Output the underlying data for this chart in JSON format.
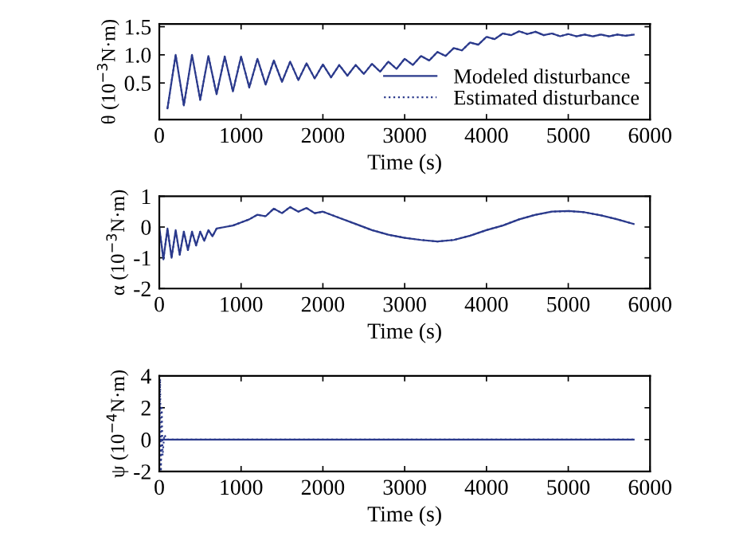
{
  "chart_data": [
    {
      "type": "line",
      "xlabel": "Time (s)",
      "ylabel": "θ (10$^{−3}$N·m)",
      "xlim": [
        0,
        6000
      ],
      "xticks": [
        0,
        1000,
        2000,
        3000,
        4000,
        5000,
        6000
      ],
      "ylim": [
        -0.15,
        1.55
      ],
      "yticks": [
        0.5,
        {
          "value": 1,
          "label": "1.0"
        },
        1.5
      ],
      "legend": "bottom right",
      "grid": false,
      "series": [
        {
          "name": "Modeled disturbance",
          "color": "#2b3a8c",
          "line_style": "solid",
          "x": [
            100,
            200,
            300,
            400,
            500,
            600,
            700,
            800,
            900,
            1000,
            1100,
            1200,
            1300,
            1400,
            1500,
            1600,
            1700,
            1800,
            1900,
            2000,
            2100,
            2200,
            2300,
            2400,
            2500,
            2600,
            2700,
            2800,
            2900,
            3000,
            3100,
            3200,
            3300,
            3400,
            3500,
            3600,
            3700,
            3800,
            3900,
            4000,
            4100,
            4200,
            4300,
            4400,
            4500,
            4600,
            4700,
            4800,
            4900,
            5000,
            5100,
            5200,
            5300,
            5400,
            5500,
            5600,
            5700,
            5800
          ],
          "values": [
            0.05,
            1.0,
            0.1,
            1.0,
            0.2,
            0.98,
            0.3,
            0.97,
            0.35,
            0.97,
            0.42,
            0.93,
            0.47,
            0.9,
            0.52,
            0.88,
            0.55,
            0.85,
            0.58,
            0.83,
            0.6,
            0.82,
            0.63,
            0.82,
            0.66,
            0.84,
            0.7,
            0.88,
            0.75,
            0.93,
            0.82,
            0.98,
            0.9,
            1.05,
            0.98,
            1.12,
            1.08,
            1.22,
            1.18,
            1.32,
            1.28,
            1.38,
            1.35,
            1.42,
            1.37,
            1.41,
            1.35,
            1.38,
            1.33,
            1.37,
            1.33,
            1.36,
            1.33,
            1.36,
            1.33,
            1.36,
            1.34,
            1.36
          ]
        },
        {
          "name": "Estimated disturbance",
          "color": "#2b3a8c",
          "line_style": "dotted",
          "x": [
            100,
            200,
            300,
            400,
            500,
            600,
            700,
            800,
            900,
            1000,
            1100,
            1200,
            1300,
            1400,
            1500,
            1600,
            1700,
            1800,
            1900,
            2000,
            2100,
            2200,
            2300,
            2400,
            2500,
            2600,
            2700,
            2800,
            2900,
            3000,
            3100,
            3200,
            3300,
            3400,
            3500,
            3600,
            3700,
            3800,
            3900,
            4000,
            4100,
            4200,
            4300,
            4400,
            4500,
            4600,
            4700,
            4800,
            4900,
            5000,
            5100,
            5200,
            5300,
            5400,
            5500,
            5600,
            5700,
            5800
          ],
          "values": [
            0.05,
            1.0,
            0.1,
            1.0,
            0.2,
            0.98,
            0.3,
            0.97,
            0.35,
            0.97,
            0.42,
            0.93,
            0.47,
            0.9,
            0.52,
            0.88,
            0.55,
            0.85,
            0.58,
            0.83,
            0.6,
            0.82,
            0.63,
            0.82,
            0.66,
            0.84,
            0.7,
            0.88,
            0.75,
            0.93,
            0.82,
            0.98,
            0.9,
            1.05,
            0.98,
            1.12,
            1.08,
            1.22,
            1.18,
            1.32,
            1.28,
            1.38,
            1.35,
            1.42,
            1.37,
            1.41,
            1.35,
            1.38,
            1.33,
            1.37,
            1.33,
            1.36,
            1.33,
            1.36,
            1.33,
            1.36,
            1.34,
            1.36
          ]
        }
      ]
    },
    {
      "type": "line",
      "xlabel": "Time (s)",
      "ylabel": "α (10$^{−3}$N·m)",
      "xlim": [
        0,
        6000
      ],
      "xticks": [
        0,
        1000,
        2000,
        3000,
        4000,
        5000,
        6000
      ],
      "ylim": [
        -2,
        1
      ],
      "yticks": [
        -2,
        -1,
        0,
        1
      ],
      "grid": false,
      "series": [
        {
          "color": "#2b3a8c",
          "line_style": "solid",
          "x": [
            0,
            50,
            100,
            150,
            200,
            250,
            300,
            350,
            400,
            450,
            500,
            550,
            600,
            650,
            700,
            800,
            900,
            1000,
            1100,
            1200,
            1300,
            1400,
            1500,
            1600,
            1700,
            1800,
            1900,
            2000,
            2200,
            2400,
            2600,
            2800,
            3000,
            3200,
            3400,
            3600,
            3800,
            4000,
            4200,
            4400,
            4600,
            4800,
            5000,
            5200,
            5400,
            5600,
            5800
          ],
          "values": [
            0,
            -1.05,
            -0.05,
            -1.0,
            -0.1,
            -0.9,
            -0.15,
            -0.75,
            -0.15,
            -0.6,
            -0.15,
            -0.45,
            -0.1,
            -0.3,
            -0.05,
            0,
            0.05,
            0.15,
            0.25,
            0.4,
            0.35,
            0.6,
            0.45,
            0.65,
            0.5,
            0.62,
            0.45,
            0.5,
            0.3,
            0.1,
            -0.1,
            -0.25,
            -0.35,
            -0.42,
            -0.47,
            -0.42,
            -0.28,
            -0.1,
            0.05,
            0.25,
            0.4,
            0.5,
            0.52,
            0.48,
            0.38,
            0.25,
            0.1
          ]
        },
        {
          "color": "#2b3a8c",
          "line_style": "dotted",
          "x": [
            0,
            50,
            100,
            150,
            200,
            250,
            300,
            350,
            400,
            450,
            500,
            550,
            600,
            650,
            700,
            800,
            900,
            1000,
            1100,
            1200,
            1300,
            1400,
            1500,
            1600,
            1700,
            1800,
            1900,
            2000,
            2200,
            2400,
            2600,
            2800,
            3000,
            3200,
            3400,
            3600,
            3800,
            4000,
            4200,
            4400,
            4600,
            4800,
            5000,
            5200,
            5400,
            5600,
            5800
          ],
          "values": [
            0,
            -1.05,
            -0.05,
            -1.0,
            -0.1,
            -0.9,
            -0.15,
            -0.75,
            -0.15,
            -0.6,
            -0.15,
            -0.45,
            -0.1,
            -0.3,
            -0.05,
            0,
            0.05,
            0.15,
            0.25,
            0.4,
            0.35,
            0.6,
            0.45,
            0.65,
            0.5,
            0.62,
            0.45,
            0.5,
            0.3,
            0.1,
            -0.1,
            -0.25,
            -0.35,
            -0.42,
            -0.47,
            -0.42,
            -0.28,
            -0.1,
            0.05,
            0.25,
            0.4,
            0.5,
            0.52,
            0.48,
            0.38,
            0.25,
            0.1
          ]
        }
      ]
    },
    {
      "type": "line",
      "xlabel": "Time (s)",
      "ylabel": "ψ (10$^{−4}$N·m)",
      "xlim": [
        0,
        6000
      ],
      "xticks": [
        0,
        1000,
        2000,
        3000,
        4000,
        5000,
        6000
      ],
      "ylim": [
        -2,
        4
      ],
      "yticks": [
        -2,
        0,
        2,
        4
      ],
      "grid": false,
      "series": [
        {
          "color": "#2b3a8c",
          "line_style": "solid",
          "x": [
            0,
            5800
          ],
          "values": [
            0,
            0
          ]
        },
        {
          "color": "#2b3a8c",
          "line_style": "dotted",
          "x": [
            0,
            10,
            20,
            30,
            40,
            60,
            100,
            5800
          ],
          "values": [
            0,
            3.8,
            -2,
            2,
            -1,
            0.3,
            0,
            0
          ]
        }
      ]
    }
  ]
}
